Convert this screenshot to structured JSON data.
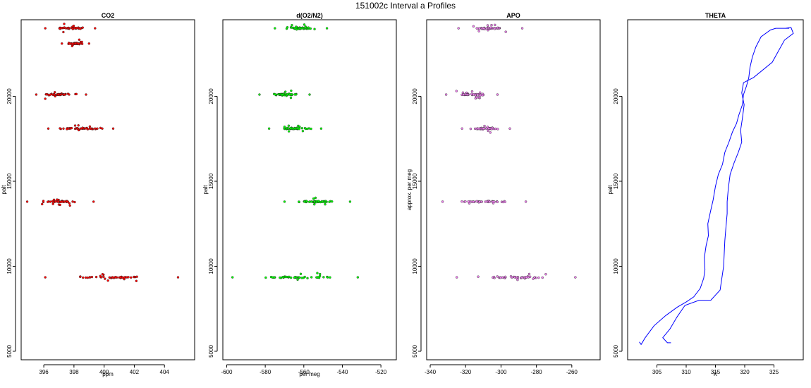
{
  "figure": {
    "title": "151002c   Interval a Profiles"
  },
  "chart_data": [
    {
      "type": "scatter",
      "title": "CO2",
      "xlabel": "ppm",
      "ylabel": "palt",
      "xlim": [
        394.5,
        406
      ],
      "ylim": [
        4500,
        24500
      ],
      "xticks": [
        "396",
        "398",
        "400",
        "402",
        "404"
      ],
      "xtick_values": [
        396,
        398,
        400,
        402,
        404
      ],
      "yticks": [
        "5000",
        "10000",
        "15000",
        "20000"
      ],
      "ytick_values": [
        5000,
        10000,
        15000,
        20000
      ],
      "color": "#ff0000",
      "clusters": [
        {
          "y": 23999,
          "x_range": [
            396.1,
            399.4
          ]
        },
        {
          "y": 23100,
          "x_range": [
            397.2,
            399.0
          ]
        },
        {
          "y": 20100,
          "x_range": [
            395.5,
            398.8
          ]
        },
        {
          "y": 18100,
          "x_range": [
            396.3,
            400.6
          ]
        },
        {
          "y": 13800,
          "x_range": [
            394.9,
            399.3
          ]
        },
        {
          "y": 9350,
          "x_range": [
            396.1,
            404.9
          ]
        }
      ]
    },
    {
      "type": "scatter",
      "title": "d(O2/N2)",
      "xlabel": "per meg",
      "ylabel": "palt",
      "xlim": [
        -602,
        -512
      ],
      "ylim": [
        4500,
        24500
      ],
      "xticks": [
        "-600",
        "-580",
        "-560",
        "-540",
        "-520"
      ],
      "xtick_values": [
        -600,
        -580,
        -560,
        -540,
        -520
      ],
      "yticks": [
        "5000",
        "10000",
        "15000",
        "20000"
      ],
      "ytick_values": [
        5000,
        10000,
        15000,
        20000
      ],
      "color": "#00ff00",
      "clusters": [
        {
          "y": 23999,
          "x_range": [
            -575,
            -548
          ]
        },
        {
          "y": 20100,
          "x_range": [
            -583,
            -557
          ]
        },
        {
          "y": 18100,
          "x_range": [
            -578,
            -551
          ]
        },
        {
          "y": 13800,
          "x_range": [
            -570,
            -536
          ]
        },
        {
          "y": 9350,
          "x_range": [
            -597,
            -532
          ]
        }
      ]
    },
    {
      "type": "scatter",
      "title": "APO",
      "xlabel": "",
      "ylabel": "approx. per meg",
      "xlim": [
        -342,
        -244
      ],
      "ylim": [
        4500,
        24500
      ],
      "xticks": [
        "-340",
        "-320",
        "-300",
        "-280",
        "-260"
      ],
      "xtick_values": [
        -340,
        -320,
        -300,
        -280,
        -260
      ],
      "yticks": [
        "5000",
        "10000",
        "15000",
        "20000"
      ],
      "ytick_values": [
        5000,
        10000,
        15000,
        20000
      ],
      "color": "#ee82ee",
      "clusters": [
        {
          "y": 23999,
          "x_range": [
            -324,
            -288
          ]
        },
        {
          "y": 20100,
          "x_range": [
            -331,
            -302
          ]
        },
        {
          "y": 18100,
          "x_range": [
            -322,
            -295
          ]
        },
        {
          "y": 13800,
          "x_range": [
            -333,
            -286
          ]
        },
        {
          "y": 9350,
          "x_range": [
            -325,
            -258
          ]
        }
      ]
    },
    {
      "type": "line",
      "title": "THETA",
      "xlabel": "K",
      "ylabel": "palt",
      "xlim": [
        300,
        330
      ],
      "ylim": [
        4500,
        24500
      ],
      "xticks": [
        "305",
        "310",
        "315",
        "320",
        "325"
      ],
      "xtick_values": [
        305,
        310,
        315,
        320,
        325
      ],
      "yticks": [
        "5000",
        "10000",
        "15000",
        "20000"
      ],
      "ytick_values": [
        5000,
        10000,
        15000,
        20000
      ],
      "color": "#0000ff",
      "series": [
        {
          "points": [
            [
              302.0,
              5550
            ],
            [
              302.3,
              5400
            ],
            [
              303.0,
              5800
            ],
            [
              304.5,
              6500
            ],
            [
              306.5,
              7100
            ],
            [
              308.5,
              7600
            ],
            [
              310.0,
              7900
            ],
            [
              311.3,
              8200
            ],
            [
              312.4,
              8700
            ],
            [
              313.0,
              9300
            ],
            [
              313.2,
              9800
            ],
            [
              313.1,
              10500
            ],
            [
              313.4,
              11200
            ],
            [
              313.8,
              11800
            ],
            [
              313.7,
              12500
            ],
            [
              314.2,
              13300
            ],
            [
              314.6,
              13900
            ],
            [
              315.0,
              14700
            ],
            [
              315.5,
              15400
            ],
            [
              316.2,
              16000
            ],
            [
              316.6,
              16700
            ],
            [
              317.3,
              17300
            ],
            [
              317.9,
              17900
            ],
            [
              318.6,
              18400
            ],
            [
              319.0,
              18900
            ],
            [
              319.6,
              19500
            ],
            [
              319.8,
              20100
            ],
            [
              320.3,
              20600
            ],
            [
              320.7,
              21100
            ],
            [
              320.9,
              21700
            ],
            [
              321.3,
              22300
            ],
            [
              321.9,
              22900
            ],
            [
              322.8,
              23500
            ],
            [
              324.4,
              23900
            ],
            [
              325.3,
              24000
            ],
            [
              326.8,
              24000
            ],
            [
              327.6,
              24000
            ]
          ]
        },
        {
          "points": [
            [
              307.4,
              5500
            ],
            [
              306.8,
              5500
            ],
            [
              306.0,
              5800
            ],
            [
              307.2,
              6300
            ],
            [
              308.4,
              7000
            ],
            [
              309.8,
              7700
            ],
            [
              312.2,
              8000
            ],
            [
              314.2,
              8000
            ],
            [
              315.8,
              8600
            ],
            [
              316.1,
              9300
            ],
            [
              316.4,
              10000
            ],
            [
              316.5,
              10800
            ],
            [
              316.6,
              11500
            ],
            [
              316.8,
              12300
            ],
            [
              317.0,
              13100
            ],
            [
              317.0,
              13800
            ],
            [
              317.2,
              14600
            ],
            [
              317.5,
              15400
            ],
            [
              318.2,
              16100
            ],
            [
              318.9,
              16700
            ],
            [
              319.5,
              17300
            ],
            [
              319.3,
              18000
            ],
            [
              319.6,
              18700
            ],
            [
              319.9,
              19500
            ],
            [
              319.5,
              20200
            ],
            [
              319.8,
              20800
            ],
            [
              321.5,
              21100
            ],
            [
              324.7,
              22000
            ],
            [
              326.8,
              23300
            ],
            [
              328.3,
              23700
            ],
            [
              327.9,
              24050
            ],
            [
              327.0,
              24000
            ]
          ]
        }
      ]
    }
  ]
}
